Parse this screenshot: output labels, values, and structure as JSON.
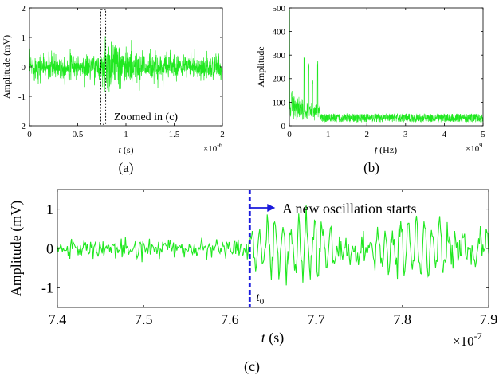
{
  "panel_labels": {
    "a": "(a)",
    "b": "(b)",
    "c": "(c)"
  },
  "colors": {
    "signal": "#20e820",
    "marker": "#1a1adc",
    "axis": "#000000"
  },
  "chart_data": [
    {
      "panel": "a",
      "type": "line",
      "series": [
        {
          "name": "",
          "color": "#20e820"
        }
      ],
      "xlabel_var": "t",
      "xlabel_unit": "(s)",
      "ylabel": "Amplitude (mV)",
      "xlim": [
        0,
        2
      ],
      "ylim": [
        -2,
        2
      ],
      "x_ticks": [
        "0",
        "0.5",
        "1",
        "1.5",
        "2"
      ],
      "y_ticks": [
        "-2",
        "-1",
        "0",
        "1",
        "2"
      ],
      "x_multiplier": {
        "base": "×10",
        "exp": "-6"
      },
      "noise_rms": 0.22,
      "oscillation": {
        "start": 0.762,
        "peak_amplitude": 1.3,
        "decay_end": 1.6
      },
      "zoom_box": {
        "x_range": [
          0.74,
          0.79
        ],
        "y_range": [
          -1.95,
          1.95
        ]
      },
      "annotation": "Zoomed in (c)"
    },
    {
      "panel": "b",
      "type": "line",
      "series": [
        {
          "name": "",
          "color": "#20e820"
        }
      ],
      "xlabel_var": "f",
      "xlabel_unit": "(Hz)",
      "ylabel": "Amplitude",
      "xlim": [
        0,
        5
      ],
      "ylim": [
        0,
        500
      ],
      "x_ticks": [
        "0",
        "1",
        "2",
        "3",
        "4",
        "5"
      ],
      "y_ticks": [
        "0",
        "100",
        "200",
        "300",
        "400",
        "500"
      ],
      "x_multiplier": {
        "base": "×10",
        "exp": "9"
      },
      "floor_level": 28,
      "peaks": [
        {
          "x": 0.0,
          "y": 500
        },
        {
          "x": 0.06,
          "y": 150
        },
        {
          "x": 0.38,
          "y": 295
        },
        {
          "x": 0.5,
          "y": 270
        },
        {
          "x": 0.6,
          "y": 200
        },
        {
          "x": 0.73,
          "y": 305
        }
      ],
      "band_end": 0.8
    },
    {
      "panel": "c",
      "type": "line",
      "series": [
        {
          "name": "",
          "color": "#20e820"
        }
      ],
      "xlabel_var": "t",
      "xlabel_unit": "(s)",
      "ylabel": "Amplitude (mV)",
      "xlim": [
        7.4,
        7.9
      ],
      "ylim": [
        -1.5,
        1.5
      ],
      "x_ticks": [
        "7.4",
        "7.5",
        "7.6",
        "7.7",
        "7.8",
        "7.9"
      ],
      "y_ticks": [
        "-1",
        "0",
        "1"
      ],
      "x_multiplier": {
        "base": "×10",
        "exp": "-7"
      },
      "noise_rms": 0.12,
      "onset": {
        "x": 7.623,
        "label_main": "t",
        "label_sub": "0"
      },
      "annotation": "A new oscillation starts",
      "oscillation_amplitude": 0.65
    }
  ]
}
